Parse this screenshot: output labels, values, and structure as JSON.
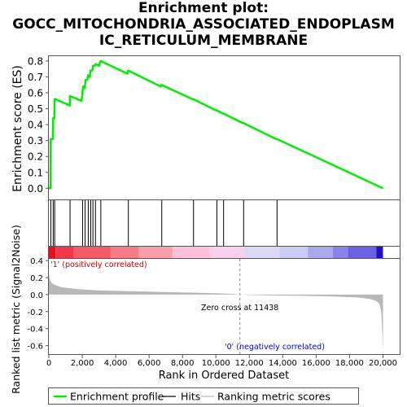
{
  "title_lines": [
    "Enrichment plot:",
    "GOCC_MITOCHONDRIA_ASSOCIATED_ENDOPLASM",
    "IC_RETICULUM_MEMBRANE"
  ],
  "colors": {
    "enrichment_line": "#00ee00",
    "hits": "#000000",
    "ranking_fill": "#b8b8b8",
    "zero_line": "#888888",
    "positive_label": "#cc0000",
    "negative_label": "#0000cc"
  },
  "labels": {
    "positive": "'1' (positively correlated)",
    "negative": "'0' (negatively correlated)",
    "zero_cross": "Zero cross at 11438"
  },
  "legend": [
    {
      "name": "Enrichment profile",
      "color": "#00ee00",
      "style": "thick"
    },
    {
      "name": "Hits",
      "color": "#000000",
      "style": "line"
    },
    {
      "name": "Ranking metric scores",
      "color": "#b8b8b8",
      "style": "line"
    }
  ],
  "chart_data": {
    "type": "line",
    "es_panel": {
      "ylabel": "Enrichment score (ES)",
      "ylim": [
        -0.07,
        0.83
      ],
      "yticks": [
        0.0,
        0.1,
        0.2,
        0.3,
        0.4,
        0.5,
        0.6,
        0.7,
        0.8
      ],
      "ytick_labels": [
        "0.0",
        "0.1",
        "0.2",
        "0.3",
        "0.4",
        "0.5",
        "0.6",
        "0.7",
        "0.8"
      ],
      "grid": false,
      "series": [
        {
          "name": "Enrichment profile",
          "x": [
            0,
            100,
            110,
            250,
            260,
            330,
            340,
            400,
            1250,
            1260,
            1950,
            2000,
            2050,
            2100,
            2150,
            2200,
            2300,
            2350,
            2450,
            2500,
            2600,
            2650,
            2750,
            2800,
            3000,
            3100,
            4700,
            4750,
            6700,
            6750,
            8600,
            8650,
            10000,
            10050,
            10400,
            10450,
            11600,
            11650,
            13600,
            13650,
            20000
          ],
          "y": [
            0.0,
            0.0,
            0.31,
            0.31,
            0.44,
            0.44,
            0.56,
            0.56,
            0.52,
            0.58,
            0.55,
            0.58,
            0.64,
            0.64,
            0.63,
            0.68,
            0.68,
            0.71,
            0.7,
            0.74,
            0.74,
            0.77,
            0.77,
            0.78,
            0.77,
            0.8,
            0.72,
            0.74,
            0.64,
            0.65,
            0.56,
            0.56,
            0.49,
            0.49,
            0.47,
            0.47,
            0.41,
            0.41,
            0.31,
            0.31,
            0.0
          ]
        }
      ]
    },
    "hits": [
      120,
      260,
      350,
      1270,
      2020,
      2170,
      2360,
      2510,
      2640,
      2790,
      3110,
      4760,
      6760,
      8660,
      10060,
      10460,
      11660,
      13660
    ],
    "ranking_panel": {
      "ylabel": "Ranked list metric (Signal2Noise)",
      "ylim": [
        -0.7,
        0.42
      ],
      "yticks": [
        -0.6,
        -0.4,
        -0.2,
        0.0,
        0.2,
        0.4
      ],
      "ytick_labels": [
        "-0.6",
        "-0.4",
        "-0.2",
        "0.0",
        "0.2",
        "0.4"
      ],
      "zero_cross": 11438,
      "profile": {
        "x": [
          0,
          30,
          100,
          200,
          400,
          700,
          1000,
          1500,
          2000,
          3000,
          4000,
          5000,
          6000,
          7000,
          8000,
          9000,
          10000,
          11000,
          11438,
          12000,
          13000,
          14000,
          15000,
          16000,
          17000,
          18000,
          18500,
          19000,
          19300,
          19500,
          19700,
          19800,
          19900,
          19950,
          20000
        ],
        "y": [
          0.28,
          0.2,
          0.16,
          0.13,
          0.11,
          0.09,
          0.08,
          0.07,
          0.06,
          0.05,
          0.045,
          0.04,
          0.035,
          0.03,
          0.025,
          0.02,
          0.015,
          0.008,
          0.0,
          -0.005,
          -0.01,
          -0.012,
          -0.015,
          -0.018,
          -0.022,
          -0.03,
          -0.035,
          -0.045,
          -0.055,
          -0.07,
          -0.09,
          -0.12,
          -0.2,
          -0.4,
          -0.65
        ]
      }
    },
    "xaxis": {
      "xlabel": "Rank in Ordered Dataset",
      "xlim": [
        0,
        21000
      ],
      "xticks": [
        0,
        2000,
        4000,
        6000,
        8000,
        10000,
        12000,
        14000,
        16000,
        18000,
        20000
      ],
      "xtick_labels": [
        "0",
        "2,000",
        "4,000",
        "6,000",
        "8,000",
        "10,000",
        "12,000",
        "14,000",
        "16,000",
        "18,000",
        "20,000"
      ]
    },
    "heatmap_colors": [
      {
        "from": 0,
        "to": 400,
        "color": "#e81020"
      },
      {
        "from": 400,
        "to": 1500,
        "color": "#f03848"
      },
      {
        "from": 1500,
        "to": 3700,
        "color": "#f55a66"
      },
      {
        "from": 3700,
        "to": 5400,
        "color": "#f87c86"
      },
      {
        "from": 5400,
        "to": 7400,
        "color": "#fb9ea6"
      },
      {
        "from": 7400,
        "to": 9600,
        "color": "#fcc0d8"
      },
      {
        "from": 9600,
        "to": 11700,
        "color": "#fad0ec"
      },
      {
        "from": 11700,
        "to": 13800,
        "color": "#dcd8f8"
      },
      {
        "from": 13800,
        "to": 15500,
        "color": "#ccccf8"
      },
      {
        "from": 15500,
        "to": 17000,
        "color": "#aaa8f0"
      },
      {
        "from": 17000,
        "to": 17900,
        "color": "#8a84ea"
      },
      {
        "from": 17900,
        "to": 19600,
        "color": "#6a60e4"
      },
      {
        "from": 19600,
        "to": 20000,
        "color": "#2010c8"
      }
    ]
  }
}
